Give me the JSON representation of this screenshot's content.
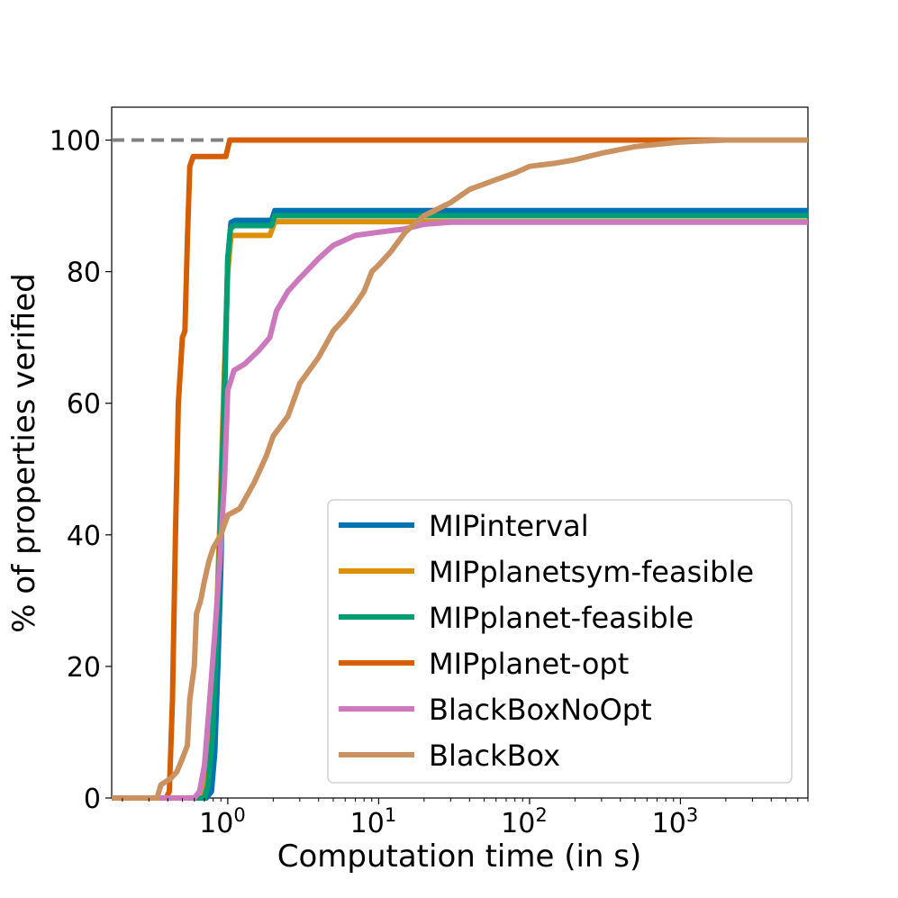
{
  "chart_data": {
    "type": "line",
    "title": "",
    "xlabel": "Computation time (in s)",
    "ylabel": "% of properties verified",
    "xscale": "log",
    "xlim": [
      0.17,
      7000
    ],
    "ylim": [
      0,
      105
    ],
    "grid": false,
    "legend_position": "lower-right",
    "x_ticks": [
      {
        "value": 1,
        "base": "10",
        "exp": "0"
      },
      {
        "value": 10,
        "base": "10",
        "exp": "1"
      },
      {
        "value": 100,
        "base": "10",
        "exp": "2"
      },
      {
        "value": 1000,
        "base": "10",
        "exp": "3"
      }
    ],
    "y_ticks": [
      {
        "value": 0,
        "label": "0"
      },
      {
        "value": 20,
        "label": "20"
      },
      {
        "value": 40,
        "label": "40"
      },
      {
        "value": 60,
        "label": "60"
      },
      {
        "value": 80,
        "label": "80"
      },
      {
        "value": 100,
        "label": "100"
      }
    ],
    "reference_line": {
      "y": 100,
      "x_range": [
        0.17,
        1.0
      ],
      "color": "#808080",
      "style": "dashed"
    },
    "series": [
      {
        "name": "MIPinterval",
        "color": "#0173b2",
        "points": [
          [
            0.17,
            0
          ],
          [
            0.72,
            0
          ],
          [
            0.78,
            1
          ],
          [
            0.82,
            7
          ],
          [
            0.86,
            20
          ],
          [
            0.9,
            35
          ],
          [
            0.95,
            60
          ],
          [
            1.0,
            82
          ],
          [
            1.05,
            87.5
          ],
          [
            1.12,
            87.8
          ],
          [
            1.95,
            87.8
          ],
          [
            2.05,
            89.3
          ],
          [
            7000,
            89.3
          ]
        ]
      },
      {
        "name": "MIPplanetsym-feasible",
        "color": "#de8f05",
        "points": [
          [
            0.17,
            0
          ],
          [
            0.68,
            0
          ],
          [
            0.72,
            2
          ],
          [
            0.77,
            8
          ],
          [
            0.82,
            20
          ],
          [
            0.88,
            40
          ],
          [
            0.94,
            62
          ],
          [
            1.0,
            80
          ],
          [
            1.05,
            85.5
          ],
          [
            1.9,
            85.5
          ],
          [
            2.05,
            87.6
          ],
          [
            7000,
            87.6
          ]
        ]
      },
      {
        "name": "MIPplanet-feasible",
        "color": "#029e73",
        "points": [
          [
            0.17,
            0
          ],
          [
            0.7,
            0
          ],
          [
            0.74,
            2
          ],
          [
            0.79,
            9
          ],
          [
            0.84,
            22
          ],
          [
            0.89,
            40
          ],
          [
            0.95,
            62
          ],
          [
            1.0,
            82
          ],
          [
            1.04,
            86.5
          ],
          [
            1.1,
            87
          ],
          [
            1.95,
            87
          ],
          [
            2.05,
            88.5
          ],
          [
            7000,
            88.5
          ]
        ]
      },
      {
        "name": "MIPplanet-opt",
        "color": "#d55e00",
        "points": [
          [
            0.17,
            0
          ],
          [
            0.39,
            0
          ],
          [
            0.41,
            1
          ],
          [
            0.43,
            15
          ],
          [
            0.45,
            40
          ],
          [
            0.47,
            60
          ],
          [
            0.5,
            70
          ],
          [
            0.52,
            71
          ],
          [
            0.54,
            85
          ],
          [
            0.56,
            96
          ],
          [
            0.59,
            97.5
          ],
          [
            0.97,
            97.5
          ],
          [
            1.03,
            100
          ],
          [
            7000,
            100
          ]
        ]
      },
      {
        "name": "BlackBoxNoOpt",
        "color": "#cc78bc",
        "points": [
          [
            0.17,
            0
          ],
          [
            0.6,
            0
          ],
          [
            0.65,
            1
          ],
          [
            0.7,
            5
          ],
          [
            0.76,
            15
          ],
          [
            0.82,
            25
          ],
          [
            0.88,
            35
          ],
          [
            0.95,
            48
          ],
          [
            1.0,
            62
          ],
          [
            1.1,
            65
          ],
          [
            1.3,
            66
          ],
          [
            1.6,
            68
          ],
          [
            1.9,
            70
          ],
          [
            2.1,
            74
          ],
          [
            2.5,
            77
          ],
          [
            3,
            79
          ],
          [
            4,
            82
          ],
          [
            5,
            84
          ],
          [
            7,
            85.5
          ],
          [
            10,
            86
          ],
          [
            15,
            86.5
          ],
          [
            20,
            87.2
          ],
          [
            30,
            87.5
          ],
          [
            7000,
            87.5
          ]
        ]
      },
      {
        "name": "BlackBox",
        "color": "#ca9161",
        "points": [
          [
            0.17,
            0
          ],
          [
            0.34,
            0
          ],
          [
            0.36,
            2
          ],
          [
            0.42,
            3
          ],
          [
            0.46,
            4
          ],
          [
            0.5,
            6
          ],
          [
            0.54,
            8
          ],
          [
            0.56,
            15
          ],
          [
            0.6,
            20
          ],
          [
            0.62,
            28
          ],
          [
            0.66,
            30
          ],
          [
            0.7,
            33
          ],
          [
            0.75,
            36
          ],
          [
            0.8,
            38
          ],
          [
            0.9,
            40
          ],
          [
            1.0,
            43
          ],
          [
            1.2,
            44
          ],
          [
            1.5,
            48
          ],
          [
            1.8,
            52
          ],
          [
            2.0,
            55
          ],
          [
            2.5,
            58
          ],
          [
            3,
            63
          ],
          [
            4,
            67
          ],
          [
            5,
            71
          ],
          [
            6,
            73
          ],
          [
            7,
            75
          ],
          [
            8,
            77
          ],
          [
            9,
            80
          ],
          [
            10,
            81
          ],
          [
            12,
            83
          ],
          [
            15,
            86
          ],
          [
            20,
            88.5
          ],
          [
            30,
            90.5
          ],
          [
            40,
            92.5
          ],
          [
            60,
            94
          ],
          [
            80,
            95
          ],
          [
            100,
            96
          ],
          [
            150,
            96.5
          ],
          [
            200,
            97
          ],
          [
            300,
            98
          ],
          [
            500,
            99
          ],
          [
            1000,
            99.7
          ],
          [
            2000,
            100
          ],
          [
            7000,
            100
          ]
        ]
      }
    ]
  }
}
